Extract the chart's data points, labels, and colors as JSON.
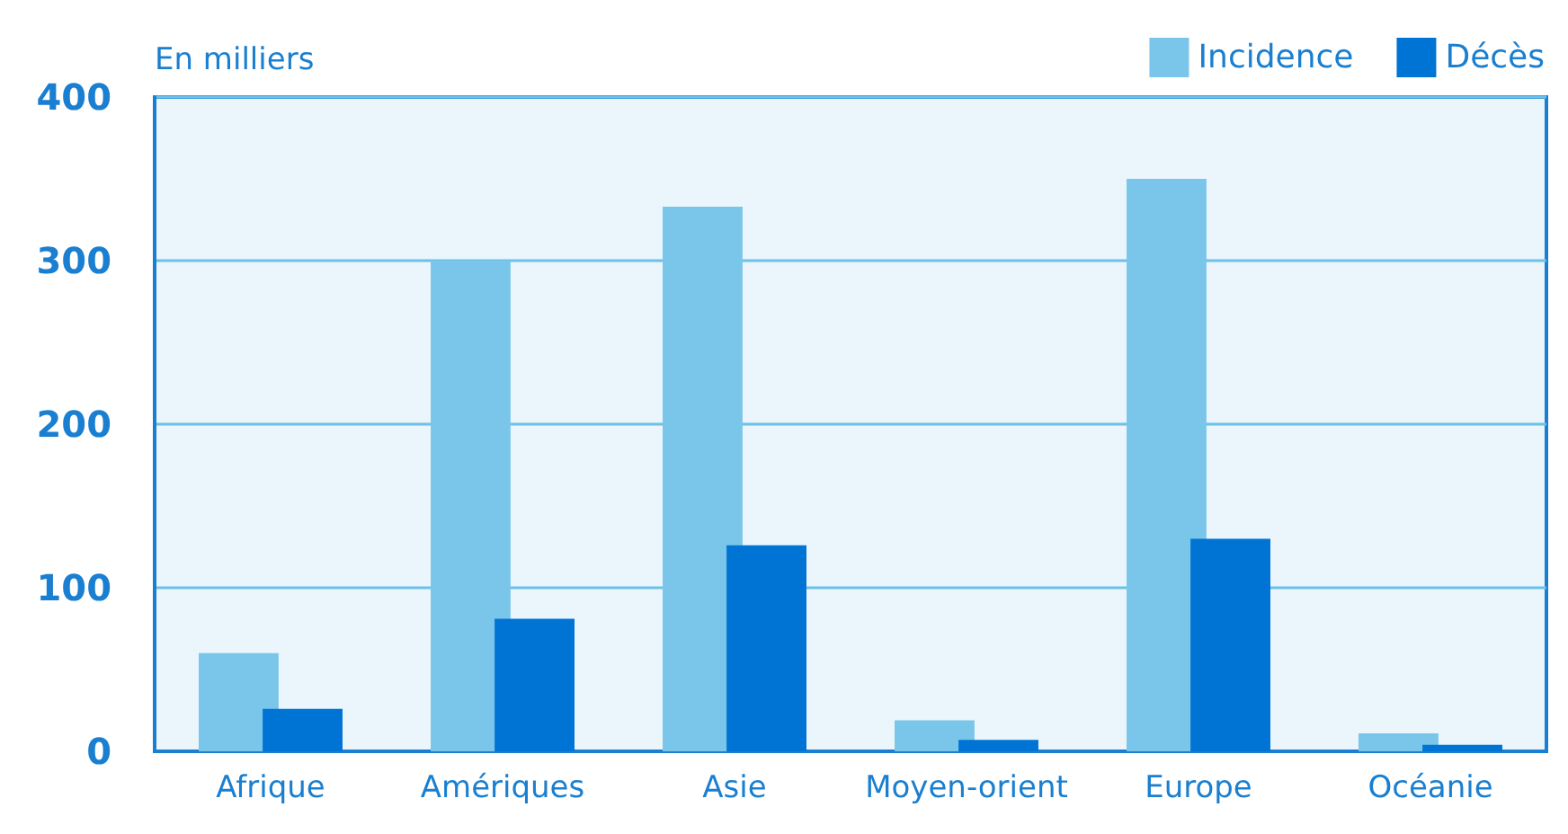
{
  "chart_data": {
    "type": "bar",
    "ylabel": "En milliers",
    "categories": [
      "Afrique",
      "Amériques",
      "Asie",
      "Moyen-orient",
      "Europe",
      "Océanie"
    ],
    "series": [
      {
        "name": "Incidence",
        "color": "#7ac6ea",
        "values": [
          60,
          300,
          333,
          19,
          350,
          11
        ]
      },
      {
        "name": "Décès",
        "color": "#0074d4",
        "values": [
          26,
          81,
          126,
          7,
          130,
          4
        ]
      }
    ],
    "ylim": [
      0,
      400
    ],
    "yticks": [
      0,
      100,
      200,
      300,
      400
    ],
    "grid": "y",
    "legend": "top right"
  }
}
